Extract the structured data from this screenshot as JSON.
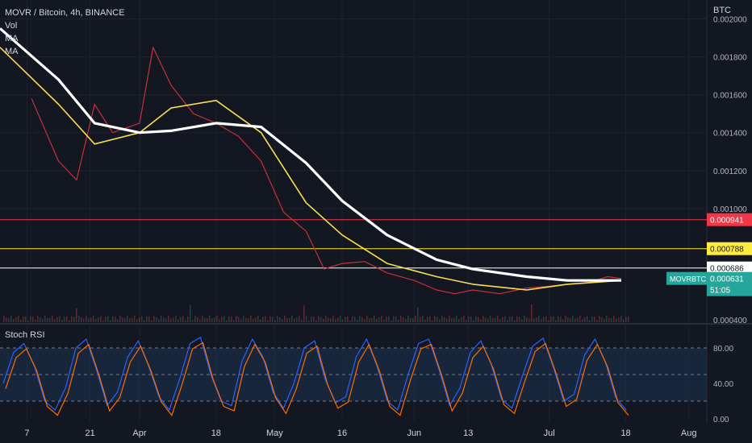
{
  "header": {
    "symbol_line": "MOVR / Bitcoin, 4h, BINANCE",
    "indicators": [
      "Vol",
      "MA",
      "MA"
    ],
    "currency": "BTC"
  },
  "rsi_panel": {
    "title": "Stoch RSI",
    "ticks": [
      "80.00",
      "40.00",
      "0.00"
    ]
  },
  "chart_data": {
    "type": "line",
    "title": "MOVR / Bitcoin, 4h, BINANCE",
    "x_tick_labels": [
      "7",
      "21",
      "Apr",
      "18",
      "May",
      "16",
      "Jun",
      "13",
      "Jul",
      "18",
      "Aug"
    ],
    "y_tick_labels": [
      "0.002000",
      "0.001800",
      "0.001600",
      "0.001400",
      "0.001200",
      "0.001000",
      "0.000400"
    ],
    "ylim": [
      0.0004,
      0.0021
    ],
    "price_series": {
      "name": "MOVRBTC",
      "x": [
        "Mar 8",
        "Mar 14",
        "Mar 18",
        "Mar 22",
        "Mar 26",
        "Apr 1",
        "Apr 4",
        "Apr 8",
        "Apr 13",
        "Apr 18",
        "Apr 23",
        "Apr 28",
        "May 3",
        "May 8",
        "May 12",
        "May 16",
        "May 21",
        "May 26",
        "Jun 1",
        "Jun 6",
        "Jun 10",
        "Jun 14",
        "Jun 20",
        "Jun 26",
        "Jul 1",
        "Jul 5",
        "Jul 10",
        "Jul 14",
        "Jul 17"
      ],
      "values": [
        0.00158,
        0.00125,
        0.00115,
        0.00155,
        0.0014,
        0.00145,
        0.00185,
        0.00165,
        0.0015,
        0.00145,
        0.00138,
        0.00125,
        0.00098,
        0.00088,
        0.00068,
        0.00071,
        0.00072,
        0.00066,
        0.00062,
        0.00057,
        0.00055,
        0.00057,
        0.00055,
        0.00058,
        0.00059,
        0.0006,
        0.00061,
        0.00064,
        0.00063
      ]
    },
    "ma_fast": {
      "x": [
        "Mar 1",
        "Mar 14",
        "Mar 22",
        "Apr 1",
        "Apr 8",
        "Apr 18",
        "Apr 28",
        "May 8",
        "May 16",
        "May 26",
        "Jun 6",
        "Jun 14",
        "Jun 26",
        "Jul 5",
        "Jul 17"
      ],
      "values": [
        0.00185,
        0.00155,
        0.00134,
        0.0014,
        0.00153,
        0.00157,
        0.0014,
        0.00103,
        0.00086,
        0.00071,
        0.00064,
        0.0006,
        0.00057,
        0.0006,
        0.00062
      ]
    },
    "ma_slow": {
      "x": [
        "Mar 1",
        "Mar 14",
        "Mar 22",
        "Apr 1",
        "Apr 8",
        "Apr 18",
        "Apr 28",
        "May 8",
        "May 16",
        "May 26",
        "Jun 6",
        "Jun 14",
        "Jun 26",
        "Jul 5",
        "Jul 17"
      ],
      "values": [
        0.00195,
        0.00168,
        0.00145,
        0.0014,
        0.00141,
        0.00145,
        0.00143,
        0.00124,
        0.00104,
        0.00086,
        0.00073,
        0.00068,
        0.00064,
        0.00062,
        0.00062
      ]
    },
    "horizontal_lines": [
      {
        "value": 0.000941,
        "label": "0.000941",
        "color": "#f23645"
      },
      {
        "value": 0.000788,
        "label": "0.000788",
        "color": "#ffeb3b"
      },
      {
        "value": 0.000686,
        "label": "0.000686",
        "color": "#ffffff"
      }
    ],
    "last_price": {
      "symbol": "MOVRBTC",
      "value": "0.000631",
      "countdown": "51:05",
      "color": "#26a69a"
    },
    "stoch_rsi": {
      "ylim": [
        0,
        100
      ],
      "bands": [
        80,
        20
      ],
      "k_values": [
        40,
        75,
        85,
        60,
        20,
        10,
        35,
        80,
        90,
        55,
        15,
        30,
        70,
        88,
        60,
        25,
        10,
        45,
        85,
        92,
        50,
        20,
        15,
        65,
        90,
        70,
        30,
        12,
        40,
        80,
        88,
        45,
        18,
        25,
        70,
        90,
        60,
        20,
        10,
        50,
        85,
        90,
        55,
        15,
        35,
        75,
        88,
        62,
        22,
        12,
        48,
        82,
        91,
        58,
        20,
        28,
        72,
        90,
        64,
        24,
        10
      ]
    }
  },
  "colors": {
    "background": "#131722",
    "grid": "#1e222d",
    "price_line": "#c8303c",
    "ma_fast": "#f7e14d",
    "ma_slow": "#ffffff",
    "rsi_k": "#2962ff",
    "rsi_d": "#ff6d00",
    "rsi_band_fill": "#1c3a5a"
  }
}
